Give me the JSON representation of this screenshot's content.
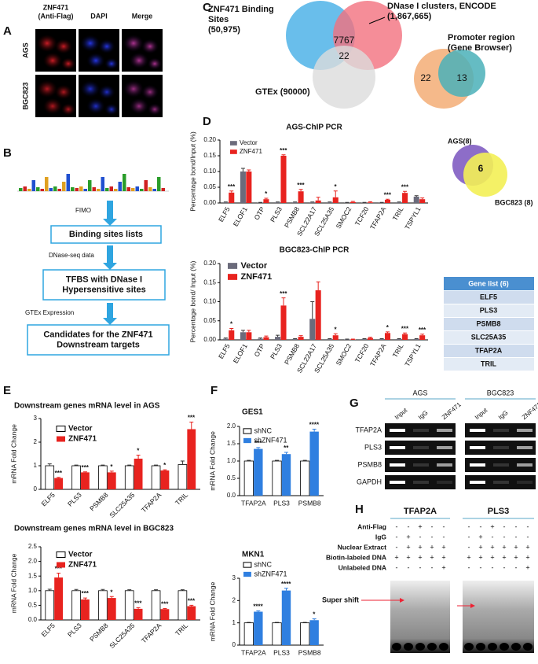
{
  "panel_a": {
    "letter": "A",
    "columns": [
      [
        "ZNF471",
        "(Anti-Flag)"
      ],
      [
        "DAPI"
      ],
      [
        "Merge"
      ]
    ],
    "rows": [
      "AGS",
      "BGC823"
    ]
  },
  "panel_b": {
    "letter": "B",
    "steps": [
      "FIMO",
      "DNase-seq data",
      "GTEx  Expression"
    ],
    "boxes": [
      [
        "Binding sites lists"
      ],
      [
        "TFBS with DNase I",
        "Hypersensitive  sites"
      ],
      [
        "Candidates for the ZNF471",
        "Downstream targets"
      ]
    ]
  },
  "panel_c": {
    "letter": "C",
    "venn1": {
      "sets": [
        [
          "ZNF471 Binding",
          "Sites",
          "(50,975)"
        ],
        [
          "DNase I clusters, ENCODE",
          "(1,867,665)"
        ],
        [
          "GTEx (90000)"
        ]
      ],
      "overlaps": [
        7767,
        22
      ]
    },
    "venn2": {
      "sets": [
        [
          "Promoter region",
          "(Gene Browser)"
        ]
      ],
      "overlaps": [
        22,
        13
      ]
    }
  },
  "panel_d": {
    "letter": "D",
    "venn": {
      "sets": [
        "AGS(8)",
        "BGC823 (8)"
      ],
      "overlap": 6
    },
    "table": {
      "header": "Gene list (6)",
      "rows": [
        "ELF5",
        "PLS3",
        "PSMB8",
        "SLC25A35",
        "TFAP2A",
        "TRIL"
      ]
    }
  },
  "panel_e": {
    "letter": "E"
  },
  "panel_f": {
    "letter": "F"
  },
  "panel_g": {
    "letter": "G",
    "groups": [
      "AGS",
      "BGC823"
    ],
    "lanes": [
      "Input",
      "IgG",
      "ZNF471"
    ],
    "rows": [
      "TFAP2A",
      "PLS3",
      "PSMB8",
      "GAPDH"
    ]
  },
  "panel_h": {
    "letter": "H",
    "groups": [
      "TFAP2A",
      "PLS3"
    ],
    "conditions": [
      "Anti-Flag",
      "IgG",
      "Nuclear Extract",
      "Biotin-labeled DNA",
      "Unlabeled DNA"
    ],
    "signs": [
      [
        [
          "-",
          "-",
          "+",
          "-",
          "-"
        ],
        [
          "-",
          "+",
          "-",
          "-",
          "-"
        ],
        [
          "-",
          "+",
          "+",
          "+",
          "+"
        ],
        [
          "+",
          "+",
          "+",
          "+",
          "+"
        ],
        [
          "-",
          "-",
          "-",
          "-",
          "+"
        ]
      ],
      [
        [
          "-",
          "-",
          "+",
          "-",
          "-",
          "-"
        ],
        [
          "-",
          "+",
          "-",
          "-",
          "-",
          "-"
        ],
        [
          "-",
          "+",
          "+",
          "+",
          "+",
          "+"
        ],
        [
          "+",
          "+",
          "+",
          "+",
          "+",
          "+"
        ],
        [
          "-",
          "-",
          "-",
          "-",
          "-",
          "+"
        ]
      ]
    ],
    "annotation": "Super shift"
  },
  "chart_data": [
    {
      "type": "bar",
      "title": "AGS-ChIP PCR",
      "y_label": "Percentage bond/Input (%)",
      "categories": [
        "ELF5",
        "ELOF1",
        "OTP",
        "PLS3",
        "PSMB8",
        "SCL22A17",
        "SCL25A35",
        "SMOC2",
        "TCF20",
        "TFAP2A",
        "TRIL",
        "TSPYL1"
      ],
      "series": [
        {
          "name": "Vector",
          "color": "#6b6b7b",
          "values": [
            0.002,
            0.1,
            0.001,
            0.002,
            0.002,
            0.002,
            0.002,
            0.001,
            0.001,
            0.001,
            0.002,
            0.02
          ],
          "errors": [
            0.001,
            0.01,
            0.001,
            0.001,
            0.001,
            0.001,
            0.001,
            0.001,
            0.001,
            0.001,
            0.001,
            0.003
          ]
        },
        {
          "name": "ZNF471",
          "color": "#e8231f",
          "values": [
            0.033,
            0.1,
            0.012,
            0.15,
            0.037,
            0.008,
            0.018,
            0.003,
            0.002,
            0.01,
            0.032,
            0.012
          ],
          "errors": [
            0.005,
            0.005,
            0.003,
            0.003,
            0.006,
            0.01,
            0.02,
            0.002,
            0.002,
            0.002,
            0.005,
            0.004
          ]
        }
      ],
      "significance": [
        "***",
        null,
        "*",
        "***",
        "***",
        null,
        "*",
        null,
        null,
        "***",
        "***",
        null
      ],
      "ylim": [
        0,
        0.2
      ],
      "yticks": [
        {
          "value": 0,
          "label": "0.00"
        },
        0.05,
        {
          "value": 0.1,
          "label": "0.10"
        },
        0.15,
        {
          "value": 0.2,
          "label": "0.20"
        }
      ]
    },
    {
      "type": "bar",
      "title": "BGC823-ChIP PCR",
      "y_label": "Percentage bond/ Input (%)",
      "categories": [
        "ELF5",
        "ELOF1",
        "OTP",
        "PLS3",
        "PSMB8",
        "SCL22A17",
        "SCL25A35",
        "SMOC2",
        "TCF20",
        "TFAP2A",
        "TRIL",
        "TSPYL1"
      ],
      "series": [
        {
          "name": "Vector",
          "color": "#6b6b7b",
          "values": [
            0.003,
            0.02,
            0.003,
            0.008,
            0.002,
            0.055,
            0.002,
            0.001,
            0.002,
            0.002,
            0.002,
            0.002
          ],
          "errors": [
            0.002,
            0.005,
            0.002,
            0.004,
            0.001,
            0.045,
            0.001,
            0.001,
            0.001,
            0.001,
            0.001,
            0.001
          ]
        },
        {
          "name": "ZNF471",
          "color": "#e8231f",
          "values": [
            0.025,
            0.02,
            0.007,
            0.09,
            0.008,
            0.13,
            0.012,
            0.001,
            0.005,
            0.018,
            0.015,
            0.012
          ],
          "errors": [
            0.005,
            0.005,
            0.003,
            0.02,
            0.003,
            0.022,
            0.004,
            0.001,
            0.002,
            0.003,
            0.003,
            0.003
          ]
        }
      ],
      "significance": [
        "*",
        null,
        null,
        "***",
        null,
        null,
        "*",
        null,
        null,
        "*",
        "***",
        "***"
      ],
      "ylim": [
        0,
        0.2
      ],
      "yticks": [
        {
          "value": 0,
          "label": "0.00"
        },
        0.05,
        {
          "value": 0.1,
          "label": "0.10"
        },
        0.15,
        {
          "value": 0.2,
          "label": "0.20"
        }
      ]
    },
    {
      "type": "bar",
      "title": "Downstream genes mRNA level in AGS",
      "y_label": "mRNA Fold Change",
      "categories": [
        "ELF5",
        "PLS3",
        "PSMB8",
        "SLC25A35",
        "TFAP2A",
        "TRIL"
      ],
      "series": [
        {
          "name": "Vector",
          "color": "#ffffff",
          "values": [
            1,
            1,
            1,
            1,
            1,
            1.05
          ],
          "errors": [
            0.08,
            0.03,
            0.03,
            0.03,
            0.03,
            0.15
          ]
        },
        {
          "name": "ZNF471",
          "color": "#e8231f",
          "values": [
            0.48,
            0.72,
            0.72,
            1.3,
            0.8,
            2.55
          ],
          "errors": [
            0.03,
            0.02,
            0.05,
            0.15,
            0.03,
            0.3
          ]
        }
      ],
      "significance": [
        "***",
        "***",
        "*",
        "*",
        "*",
        "***"
      ],
      "ylim": [
        0,
        3
      ],
      "yticks": [
        0,
        1,
        2,
        3
      ]
    },
    {
      "type": "bar",
      "title": "Downstream genes mRNA level in BGC823",
      "y_label": "mRNA Fold Change",
      "categories": [
        "ELF5",
        "PLS3",
        "PSMB8",
        "SLC25A35",
        "TFAP2A",
        "TRIL"
      ],
      "series": [
        {
          "name": "Vector",
          "color": "#ffffff",
          "values": [
            1,
            1,
            1,
            1,
            1,
            1
          ],
          "errors": [
            0.05,
            0.04,
            0.04,
            0.03,
            0.03,
            0.03
          ]
        },
        {
          "name": "ZNF471",
          "color": "#e8231f",
          "values": [
            1.45,
            0.7,
            0.75,
            0.38,
            0.37,
            0.47
          ],
          "errors": [
            0.15,
            0.05,
            0.05,
            0.04,
            0.02,
            0.03
          ]
        }
      ],
      "significance": [
        "***",
        "***",
        "*",
        "***",
        "***",
        "***"
      ],
      "ylim": [
        0,
        2.5
      ],
      "yticks": [
        {
          "value": 0,
          "label": "0.0"
        },
        0.5,
        {
          "value": 1,
          "label": "1.0"
        },
        1.5,
        {
          "value": 2,
          "label": "2.0"
        },
        2.5
      ]
    },
    {
      "type": "bar",
      "title": "GES1",
      "y_label": "mRNA Fold Change",
      "categories": [
        "TFAP2A",
        "PLS3",
        "PSMB8"
      ],
      "series": [
        {
          "name": "shNC",
          "color": "#ffffff",
          "values": [
            1,
            1,
            1
          ],
          "errors": [
            0.02,
            0.02,
            0.02
          ]
        },
        {
          "name": "shZNF471",
          "color": "#2f7fe0",
          "values": [
            1.35,
            1.2,
            1.85
          ],
          "errors": [
            0.04,
            0.05,
            0.07
          ]
        }
      ],
      "significance": [
        "***",
        "**",
        "****"
      ],
      "ylim": [
        0,
        2
      ],
      "yticks": [
        {
          "value": 0,
          "label": "0.0"
        },
        0.5,
        {
          "value": 1,
          "label": "1.0"
        },
        1.5,
        {
          "value": 2,
          "label": "2.0"
        }
      ]
    },
    {
      "type": "bar",
      "title": "MKN1",
      "y_label": "mRNA Fold Change",
      "categories": [
        "TFAP2A",
        "PLS3",
        "PSMB8"
      ],
      "series": [
        {
          "name": "shNC",
          "color": "#ffffff",
          "values": [
            1,
            1,
            1
          ],
          "errors": [
            0.02,
            0.02,
            0.02
          ]
        },
        {
          "name": "shZNF471",
          "color": "#2f7fe0",
          "values": [
            1.5,
            2.45,
            1.12
          ],
          "errors": [
            0.04,
            0.1,
            0.06
          ]
        }
      ],
      "significance": [
        "****",
        "****",
        "*"
      ],
      "ylim": [
        0,
        3
      ],
      "yticks": [
        0,
        1,
        2,
        3
      ]
    }
  ]
}
